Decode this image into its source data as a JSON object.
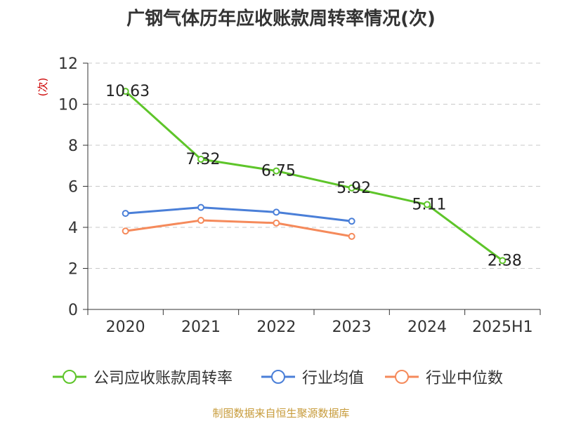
{
  "title": "广钢气体历年应收账款周转率情况(次)",
  "source_note": "制图数据来自恒生聚源数据库",
  "chart_data": {
    "type": "line",
    "title": "广钢气体历年应收账款周转率情况(次)",
    "ylabel": "(次)",
    "xlabel": "",
    "categories": [
      "2020",
      "2021",
      "2022",
      "2023",
      "2024",
      "2025H1"
    ],
    "ylim": [
      0,
      12
    ],
    "yticks": [
      0,
      2,
      4,
      6,
      8,
      10,
      12
    ],
    "grid": true,
    "legend_position": "bottom",
    "series": [
      {
        "name": "公司应收账款周转率",
        "color": "#5ec52a",
        "values": [
          10.63,
          7.32,
          6.75,
          5.92,
          5.11,
          2.38
        ],
        "show_labels": true,
        "labels": [
          "10.63",
          "7.32",
          "6.75",
          "5.92",
          "5.11",
          "2.38"
        ]
      },
      {
        "name": "行业均值",
        "color": "#4a7fd8",
        "values": [
          4.68,
          4.97,
          4.74,
          4.3,
          null,
          null
        ],
        "show_labels": false
      },
      {
        "name": "行业中位数",
        "color": "#f58a5b",
        "values": [
          3.82,
          4.34,
          4.21,
          3.56,
          null,
          null
        ],
        "show_labels": false
      }
    ]
  }
}
